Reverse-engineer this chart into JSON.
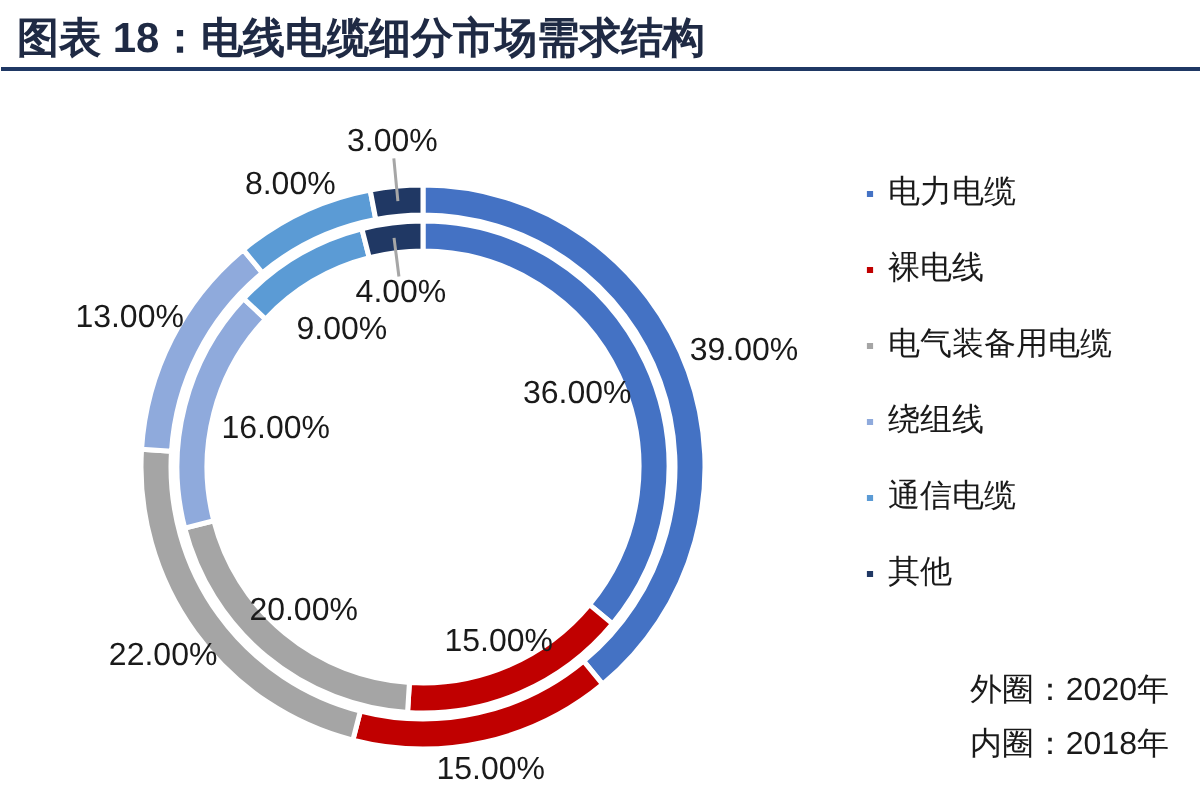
{
  "chart_data": {
    "type": "donut",
    "title": "图表 18：电线电缆细分市场需求结构",
    "categories": [
      "电力电缆",
      "裸电线",
      "电气装备用电缆",
      "绕组线",
      "通信电缆",
      "其他"
    ],
    "colors": [
      "#4472c4",
      "#c00000",
      "#a5a5a5",
      "#8faadc",
      "#5b9bd5",
      "#203864"
    ],
    "series": [
      {
        "values": [
          39,
          15,
          22,
          13,
          8,
          3
        ],
        "value_labels": [
          "39.00%",
          "15.00%",
          "22.00%",
          "13.00%",
          "8.00%",
          "3.00%"
        ]
      },
      {
        "values": [
          36,
          15,
          20,
          16,
          9,
          4
        ],
        "value_labels": [
          "36.00%",
          "15.00%",
          "20.00%",
          "16.00%",
          "9.00%",
          "4.00%"
        ]
      }
    ],
    "legend": "right",
    "annotations": [
      "外圈：2020年",
      "内圈：2018年"
    ]
  }
}
